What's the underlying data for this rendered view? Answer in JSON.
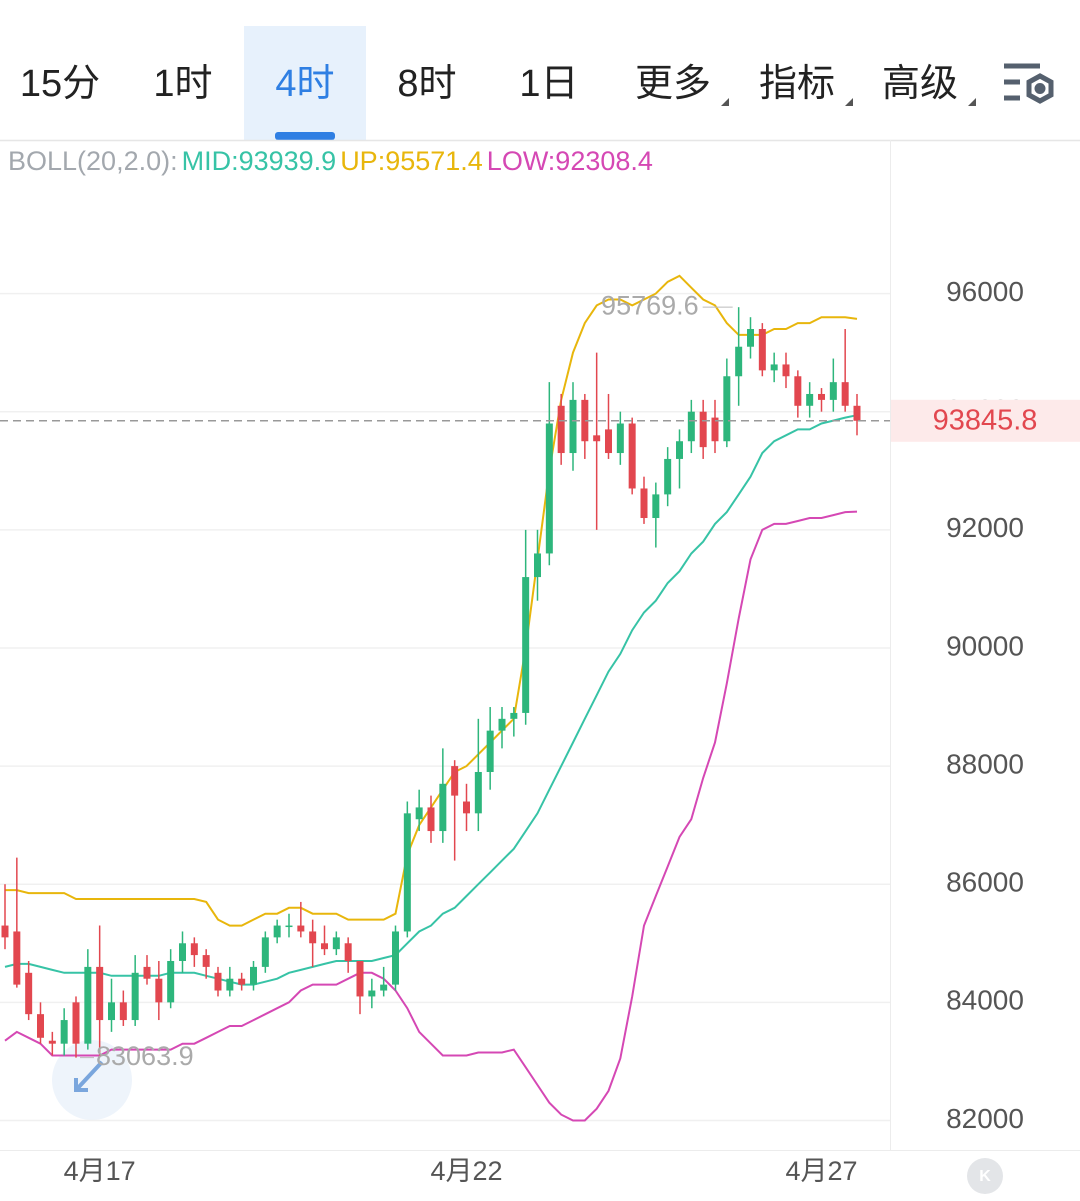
{
  "tabs": [
    {
      "label": "15分"
    },
    {
      "label": "1时"
    },
    {
      "label": "4时",
      "active": true
    },
    {
      "label": "8时"
    },
    {
      "label": "1日"
    },
    {
      "label": "更多",
      "menu": true
    },
    {
      "label": "指标",
      "menu": true
    },
    {
      "label": "高级",
      "menu": true
    }
  ],
  "chart_data": {
    "type": "candlestick",
    "indicator_label": "BOLL(20,2.0):",
    "categories": [
      null,
      null,
      null,
      null,
      null,
      null,
      null,
      null,
      "4月17",
      null,
      null,
      null,
      null,
      null,
      null,
      null,
      null,
      null,
      null,
      null,
      null,
      null,
      null,
      null,
      null,
      null,
      null,
      null,
      null,
      null,
      null,
      null,
      null,
      null,
      null,
      null,
      null,
      null,
      null,
      "4月22",
      null,
      null,
      null,
      null,
      null,
      null,
      null,
      null,
      null,
      null,
      null,
      null,
      null,
      null,
      null,
      null,
      null,
      null,
      null,
      null,
      null,
      null,
      null,
      null,
      null,
      null,
      null,
      null,
      null,
      "4月27",
      null,
      null,
      null
    ],
    "open": [
      85300,
      85200,
      84500,
      83800,
      83350,
      83300,
      84000,
      83300,
      84600,
      83700,
      84000,
      83700,
      84600,
      84400,
      84000,
      84700,
      85000,
      84800,
      84500,
      84200,
      84400,
      84300,
      84600,
      85100,
      85300,
      85300,
      85200,
      85000,
      84900,
      85000,
      84700,
      84100,
      84200,
      84300,
      85200,
      87100,
      87300,
      86900,
      88000,
      87400,
      87200,
      87900,
      88600,
      88800,
      88900,
      91200,
      91600,
      94100,
      93300,
      94200,
      93600,
      93700,
      93300,
      93800,
      92700,
      92200,
      92600,
      93200,
      93500,
      94000,
      93900,
      93500,
      94600,
      95100,
      95400,
      94700,
      94800,
      94600,
      94100,
      94300,
      94200,
      94500,
      94100
    ],
    "high": [
      86000,
      86450,
      84700,
      84000,
      83500,
      83900,
      84100,
      84900,
      85300,
      84400,
      84200,
      84800,
      84800,
      84700,
      84900,
      85200,
      85100,
      84900,
      84600,
      84600,
      84500,
      84700,
      85200,
      85400,
      85500,
      85700,
      85400,
      85300,
      85200,
      85100,
      84700,
      84400,
      84600,
      85300,
      87400,
      87600,
      87500,
      88300,
      88100,
      87700,
      88800,
      89000,
      89000,
      89000,
      92000,
      92000,
      94500,
      94300,
      94500,
      94300,
      95000,
      94300,
      94000,
      93900,
      92900,
      92800,
      93400,
      93700,
      94200,
      94200,
      94200,
      94900,
      95769.6,
      95600,
      95500,
      95000,
      95000,
      94700,
      94500,
      94400,
      94900,
      95400,
      94300
    ],
    "low": [
      84900,
      84250,
      83700,
      83300,
      83100,
      83100,
      83063.9,
      83200,
      83100,
      83500,
      83600,
      83600,
      84300,
      83700,
      83900,
      84500,
      84600,
      84400,
      84100,
      84100,
      84200,
      84200,
      84500,
      85000,
      85100,
      85100,
      84600,
      84800,
      84800,
      84500,
      83800,
      83900,
      84100,
      84200,
      85100,
      86900,
      86700,
      86700,
      86400,
      86900,
      86900,
      87600,
      88300,
      88500,
      88700,
      90800,
      91400,
      93100,
      93000,
      93200,
      92000,
      93200,
      93100,
      92600,
      92100,
      91700,
      92400,
      92700,
      93300,
      93200,
      93300,
      93400,
      94100,
      94900,
      94600,
      94500,
      94400,
      93900,
      93900,
      94000,
      94000,
      94000,
      93600
    ],
    "close": [
      85100,
      84300,
      83800,
      83400,
      83300,
      83700,
      83300,
      84600,
      83700,
      84000,
      83700,
      84500,
      84400,
      84000,
      84700,
      85000,
      84800,
      84600,
      84200,
      84400,
      84300,
      84600,
      85100,
      85300,
      85300,
      85200,
      85000,
      84900,
      85100,
      84700,
      84100,
      84200,
      84300,
      85200,
      87200,
      87300,
      86900,
      87700,
      87500,
      87200,
      87900,
      88600,
      88800,
      88900,
      91200,
      91600,
      93800,
      93300,
      94200,
      93500,
      93500,
      93300,
      93800,
      92700,
      92200,
      92600,
      93200,
      93500,
      94000,
      93400,
      93500,
      94600,
      95100,
      95400,
      94700,
      94800,
      94600,
      94100,
      94300,
      94200,
      94500,
      94100,
      93845.8
    ],
    "up_color": "#2db67c",
    "down_color": "#e2474f",
    "series": [
      {
        "name": "MID",
        "legend_label": "MID:93939.9",
        "color": "#37c3a6",
        "values": [
          84600,
          84650,
          84650,
          84600,
          84550,
          84500,
          84500,
          84500,
          84500,
          84450,
          84450,
          84450,
          84450,
          84450,
          84500,
          84500,
          84500,
          84450,
          84400,
          84350,
          84300,
          84300,
          84350,
          84400,
          84500,
          84550,
          84600,
          84650,
          84700,
          84700,
          84700,
          84700,
          84750,
          84800,
          85000,
          85200,
          85300,
          85500,
          85600,
          85800,
          86000,
          86200,
          86400,
          86600,
          86900,
          87200,
          87600,
          88000,
          88400,
          88800,
          89200,
          89600,
          89900,
          90300,
          90600,
          90800,
          91100,
          91300,
          91600,
          91800,
          92100,
          92300,
          92600,
          92900,
          93300,
          93500,
          93600,
          93700,
          93700,
          93800,
          93850,
          93900,
          93939.9
        ]
      },
      {
        "name": "UP",
        "legend_label": "UP:95571.4",
        "color": "#e8b60c",
        "values": [
          85900,
          85900,
          85850,
          85850,
          85850,
          85850,
          85750,
          85750,
          85750,
          85750,
          85750,
          85750,
          85750,
          85750,
          85750,
          85750,
          85750,
          85700,
          85400,
          85300,
          85300,
          85400,
          85500,
          85500,
          85600,
          85600,
          85500,
          85500,
          85500,
          85400,
          85400,
          85400,
          85400,
          85500,
          86500,
          87000,
          87300,
          87600,
          87900,
          88000,
          88200,
          88400,
          88600,
          88800,
          90000,
          91500,
          93000,
          94200,
          95000,
          95500,
          95800,
          95900,
          95900,
          95800,
          95900,
          96000,
          96200,
          96300,
          96100,
          95900,
          95800,
          95500,
          95300,
          95300,
          95300,
          95400,
          95400,
          95500,
          95500,
          95600,
          95600,
          95600,
          95571.4
        ]
      },
      {
        "name": "LOW",
        "legend_label": "LOW:92308.4",
        "color": "#d548b4",
        "values": [
          83350,
          83500,
          83400,
          83300,
          83100,
          83100,
          83100,
          83100,
          83100,
          83200,
          83200,
          83200,
          83200,
          83200,
          83200,
          83300,
          83300,
          83400,
          83500,
          83600,
          83600,
          83700,
          83800,
          83900,
          84000,
          84200,
          84300,
          84300,
          84300,
          84400,
          84500,
          84500,
          84400,
          84200,
          83900,
          83500,
          83300,
          83100,
          83100,
          83100,
          83150,
          83150,
          83150,
          83200,
          82900,
          82600,
          82300,
          82100,
          82000,
          82000,
          82200,
          82500,
          83050,
          84100,
          85300,
          85800,
          86300,
          86800,
          87100,
          87800,
          88400,
          89400,
          90500,
          91500,
          92000,
          92100,
          92100,
          92150,
          92200,
          92200,
          92250,
          92300,
          92308.4
        ]
      }
    ],
    "ylim": [
      81500,
      98600
    ],
    "yticks": [
      82000,
      84000,
      86000,
      88000,
      90000,
      92000,
      94000,
      96000
    ],
    "grid": true,
    "high_index": 62,
    "low_index": 6,
    "last_index": 72
  }
}
